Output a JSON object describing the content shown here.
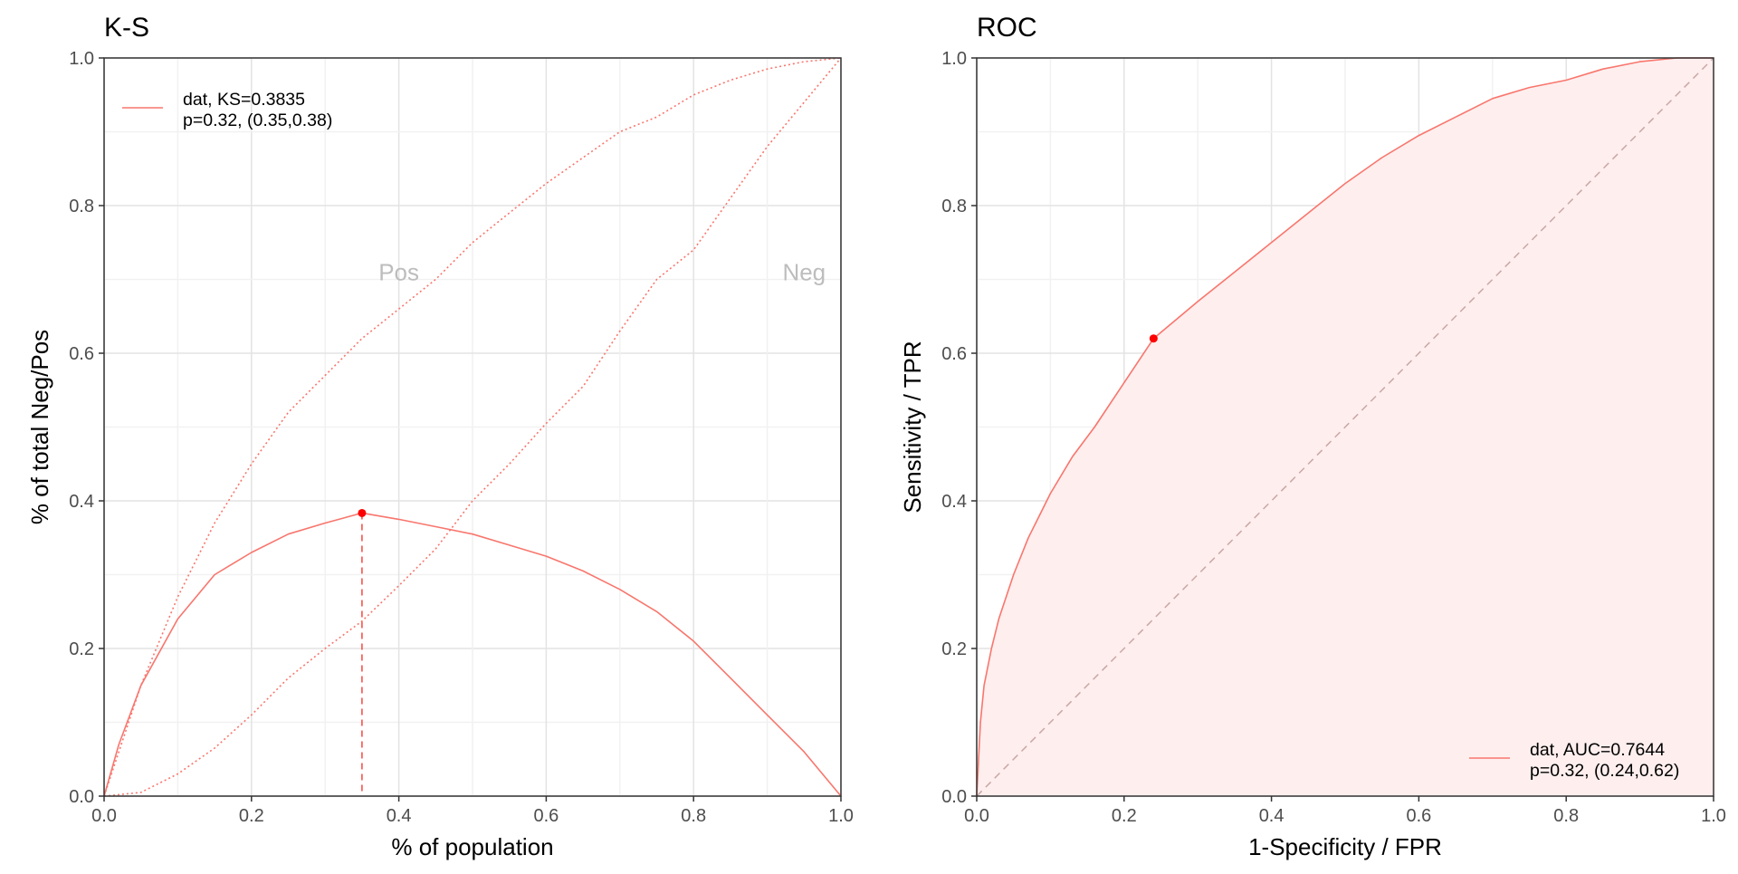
{
  "chart_data": [
    {
      "type": "line",
      "title": "K-S",
      "xlabel": "% of population",
      "ylabel": "% of total Neg/Pos",
      "xlim": [
        0,
        1
      ],
      "ylim": [
        0,
        1
      ],
      "x_ticks": [
        "0.0",
        "0.2",
        "0.4",
        "0.6",
        "0.8",
        "1.0"
      ],
      "y_ticks": [
        "0.0",
        "0.2",
        "0.4",
        "0.6",
        "0.8",
        "1.0"
      ],
      "grid": true,
      "color": "#F8766D",
      "legend": {
        "position": "top-left",
        "line1": "dat, KS=0.3835",
        "line2": "p=0.32, (0.35,0.38)"
      },
      "annotations": [
        {
          "text": "Pos",
          "x": 0.4,
          "y": 0.71
        },
        {
          "text": "Neg",
          "x": 0.95,
          "y": 0.71
        }
      ],
      "ks_point": {
        "x": 0.35,
        "y": 0.3835
      },
      "series": [
        {
          "role": "ks-curve",
          "style": "solid",
          "x": [
            0,
            0.02,
            0.05,
            0.1,
            0.15,
            0.2,
            0.25,
            0.3,
            0.35,
            0.4,
            0.45,
            0.5,
            0.55,
            0.6,
            0.65,
            0.7,
            0.75,
            0.8,
            0.85,
            0.9,
            0.95,
            1.0
          ],
          "y": [
            0,
            0.07,
            0.15,
            0.24,
            0.3,
            0.33,
            0.355,
            0.37,
            0.3835,
            0.375,
            0.365,
            0.355,
            0.34,
            0.325,
            0.305,
            0.28,
            0.25,
            0.21,
            0.16,
            0.11,
            0.06,
            0
          ]
        },
        {
          "role": "pos-cumulative",
          "style": "dotted",
          "x": [
            0,
            0.05,
            0.1,
            0.15,
            0.2,
            0.25,
            0.3,
            0.35,
            0.4,
            0.45,
            0.5,
            0.55,
            0.6,
            0.65,
            0.7,
            0.75,
            0.8,
            0.85,
            0.9,
            0.95,
            1.0
          ],
          "y": [
            0,
            0.15,
            0.27,
            0.37,
            0.45,
            0.52,
            0.57,
            0.62,
            0.66,
            0.7,
            0.75,
            0.79,
            0.83,
            0.865,
            0.9,
            0.92,
            0.95,
            0.97,
            0.985,
            0.995,
            1.0
          ]
        },
        {
          "role": "neg-cumulative",
          "style": "dotted",
          "x": [
            0,
            0.05,
            0.1,
            0.15,
            0.2,
            0.25,
            0.3,
            0.35,
            0.4,
            0.45,
            0.5,
            0.55,
            0.6,
            0.65,
            0.7,
            0.75,
            0.8,
            0.85,
            0.9,
            0.95,
            1.0
          ],
          "y": [
            0,
            0.005,
            0.03,
            0.065,
            0.11,
            0.16,
            0.2,
            0.237,
            0.285,
            0.335,
            0.4,
            0.45,
            0.505,
            0.555,
            0.63,
            0.7,
            0.74,
            0.81,
            0.88,
            0.94,
            1.0
          ]
        }
      ]
    },
    {
      "type": "area",
      "title": "ROC",
      "xlabel": "1-Specificity / FPR",
      "ylabel": "Sensitivity / TPR",
      "xlim": [
        0,
        1
      ],
      "ylim": [
        0,
        1
      ],
      "x_ticks": [
        "0.0",
        "0.2",
        "0.4",
        "0.6",
        "0.8",
        "1.0"
      ],
      "y_ticks": [
        "0.0",
        "0.2",
        "0.4",
        "0.6",
        "0.8",
        "1.0"
      ],
      "grid": true,
      "color": "#F8766D",
      "fill_color": "#FEEEEE",
      "legend": {
        "position": "bottom-right",
        "line1": "dat, AUC=0.7644",
        "line2": "p=0.32, (0.24,0.62)"
      },
      "cutoff_point": {
        "x": 0.24,
        "y": 0.62
      },
      "series": [
        {
          "role": "roc-curve",
          "x": [
            0,
            0.005,
            0.01,
            0.02,
            0.03,
            0.05,
            0.07,
            0.1,
            0.13,
            0.16,
            0.2,
            0.24,
            0.3,
            0.35,
            0.4,
            0.45,
            0.5,
            0.55,
            0.6,
            0.65,
            0.7,
            0.75,
            0.8,
            0.85,
            0.9,
            0.95,
            1.0
          ],
          "y": [
            0,
            0.1,
            0.15,
            0.2,
            0.24,
            0.3,
            0.35,
            0.41,
            0.46,
            0.5,
            0.56,
            0.62,
            0.67,
            0.71,
            0.75,
            0.79,
            0.83,
            0.865,
            0.895,
            0.92,
            0.945,
            0.96,
            0.97,
            0.985,
            0.995,
            1.0,
            1.0
          ]
        },
        {
          "role": "diagonal",
          "style": "dashed",
          "x": [
            0,
            1
          ],
          "y": [
            0,
            1
          ]
        }
      ]
    }
  ]
}
